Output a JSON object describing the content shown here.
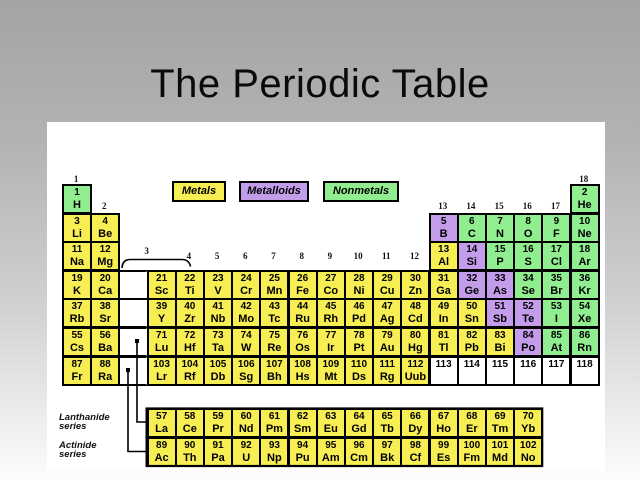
{
  "slide": {
    "title": "The Periodic Table"
  },
  "legend": {
    "metals": "Metals",
    "metalloids": "Metalloids",
    "nonmetals": "Nonmetals"
  },
  "series_labels": {
    "lanthanide": "Lanthanide series",
    "actinide": "Actinide series"
  },
  "colors": {
    "metal": "#F7EE53",
    "metalloid": "#C49DEA",
    "nonmetal": "#90EE90",
    "empty": "#FFFFFF",
    "background_top": "#A4A4A4",
    "background_bottom": "#FCFCFC"
  },
  "group_labels": [
    {
      "label": "1",
      "g": 0,
      "band": "top"
    },
    {
      "label": "2",
      "g": 1,
      "band": "upper"
    },
    {
      "label": "3",
      "g": 3,
      "band": "bracket"
    },
    {
      "label": "4",
      "g": 4,
      "band": "mid"
    },
    {
      "label": "5",
      "g": 5,
      "band": "mid"
    },
    {
      "label": "6",
      "g": 6,
      "band": "mid"
    },
    {
      "label": "7",
      "g": 7,
      "band": "mid"
    },
    {
      "label": "8",
      "g": 8,
      "band": "mid"
    },
    {
      "label": "9",
      "g": 9,
      "band": "mid"
    },
    {
      "label": "10",
      "g": 10,
      "band": "mid"
    },
    {
      "label": "11",
      "g": 11,
      "band": "mid"
    },
    {
      "label": "12",
      "g": 12,
      "band": "mid"
    },
    {
      "label": "13",
      "g": 13,
      "band": "upper"
    },
    {
      "label": "14",
      "g": 14,
      "band": "upper"
    },
    {
      "label": "15",
      "g": 15,
      "band": "upper"
    },
    {
      "label": "16",
      "g": 16,
      "band": "upper"
    },
    {
      "label": "17",
      "g": 17,
      "band": "upper"
    },
    {
      "label": "18",
      "g": 18,
      "band": "top"
    }
  ],
  "elements": [
    {
      "n": "1",
      "s": "H",
      "t": "nonmetal",
      "r": 1,
      "g": 0
    },
    {
      "n": "2",
      "s": "He",
      "t": "nonmetal",
      "r": 1,
      "g": 18
    },
    {
      "n": "3",
      "s": "Li",
      "t": "metal",
      "r": 2,
      "g": 0
    },
    {
      "n": "4",
      "s": "Be",
      "t": "metal",
      "r": 2,
      "g": 1
    },
    {
      "n": "5",
      "s": "B",
      "t": "metalloid",
      "r": 2,
      "g": 13
    },
    {
      "n": "6",
      "s": "C",
      "t": "nonmetal",
      "r": 2,
      "g": 14
    },
    {
      "n": "7",
      "s": "N",
      "t": "nonmetal",
      "r": 2,
      "g": 15
    },
    {
      "n": "8",
      "s": "O",
      "t": "nonmetal",
      "r": 2,
      "g": 16
    },
    {
      "n": "9",
      "s": "F",
      "t": "nonmetal",
      "r": 2,
      "g": 17
    },
    {
      "n": "10",
      "s": "Ne",
      "t": "nonmetal",
      "r": 2,
      "g": 18
    },
    {
      "n": "11",
      "s": "Na",
      "t": "metal",
      "r": 3,
      "g": 0
    },
    {
      "n": "12",
      "s": "Mg",
      "t": "metal",
      "r": 3,
      "g": 1
    },
    {
      "n": "13",
      "s": "Al",
      "t": "metal",
      "r": 3,
      "g": 13
    },
    {
      "n": "14",
      "s": "Si",
      "t": "metalloid",
      "r": 3,
      "g": 14
    },
    {
      "n": "15",
      "s": "P",
      "t": "nonmetal",
      "r": 3,
      "g": 15
    },
    {
      "n": "16",
      "s": "S",
      "t": "nonmetal",
      "r": 3,
      "g": 16
    },
    {
      "n": "17",
      "s": "Cl",
      "t": "nonmetal",
      "r": 3,
      "g": 17
    },
    {
      "n": "18",
      "s": "Ar",
      "t": "nonmetal",
      "r": 3,
      "g": 18
    },
    {
      "n": "19",
      "s": "K",
      "t": "metal",
      "r": 4,
      "g": 0
    },
    {
      "n": "20",
      "s": "Ca",
      "t": "metal",
      "r": 4,
      "g": 1
    },
    {
      "n": "",
      "s": "",
      "t": "gap",
      "r": 4,
      "g": 2
    },
    {
      "n": "21",
      "s": "Sc",
      "t": "metal",
      "r": 4,
      "g": 3
    },
    {
      "n": "22",
      "s": "Ti",
      "t": "metal",
      "r": 4,
      "g": 4
    },
    {
      "n": "23",
      "s": "V",
      "t": "metal",
      "r": 4,
      "g": 5
    },
    {
      "n": "24",
      "s": "Cr",
      "t": "metal",
      "r": 4,
      "g": 6
    },
    {
      "n": "25",
      "s": "Mn",
      "t": "metal",
      "r": 4,
      "g": 7
    },
    {
      "n": "26",
      "s": "Fe",
      "t": "metal",
      "r": 4,
      "g": 8
    },
    {
      "n": "27",
      "s": "Co",
      "t": "metal",
      "r": 4,
      "g": 9
    },
    {
      "n": "28",
      "s": "Ni",
      "t": "metal",
      "r": 4,
      "g": 10
    },
    {
      "n": "29",
      "s": "Cu",
      "t": "metal",
      "r": 4,
      "g": 11
    },
    {
      "n": "30",
      "s": "Zn",
      "t": "metal",
      "r": 4,
      "g": 12
    },
    {
      "n": "31",
      "s": "Ga",
      "t": "metal",
      "r": 4,
      "g": 13
    },
    {
      "n": "32",
      "s": "Ge",
      "t": "metalloid",
      "r": 4,
      "g": 14
    },
    {
      "n": "33",
      "s": "As",
      "t": "metalloid",
      "r": 4,
      "g": 15
    },
    {
      "n": "34",
      "s": "Se",
      "t": "nonmetal",
      "r": 4,
      "g": 16
    },
    {
      "n": "35",
      "s": "Br",
      "t": "nonmetal",
      "r": 4,
      "g": 17
    },
    {
      "n": "36",
      "s": "Kr",
      "t": "nonmetal",
      "r": 4,
      "g": 18
    },
    {
      "n": "37",
      "s": "Rb",
      "t": "metal",
      "r": 5,
      "g": 0
    },
    {
      "n": "38",
      "s": "Sr",
      "t": "metal",
      "r": 5,
      "g": 1
    },
    {
      "n": "",
      "s": "",
      "t": "gap",
      "r": 5,
      "g": 2
    },
    {
      "n": "39",
      "s": "Y",
      "t": "metal",
      "r": 5,
      "g": 3
    },
    {
      "n": "40",
      "s": "Zr",
      "t": "metal",
      "r": 5,
      "g": 4
    },
    {
      "n": "41",
      "s": "Nb",
      "t": "metal",
      "r": 5,
      "g": 5
    },
    {
      "n": "42",
      "s": "Mo",
      "t": "metal",
      "r": 5,
      "g": 6
    },
    {
      "n": "43",
      "s": "Tc",
      "t": "metal",
      "r": 5,
      "g": 7
    },
    {
      "n": "44",
      "s": "Ru",
      "t": "metal",
      "r": 5,
      "g": 8
    },
    {
      "n": "45",
      "s": "Rh",
      "t": "metal",
      "r": 5,
      "g": 9
    },
    {
      "n": "46",
      "s": "Pd",
      "t": "metal",
      "r": 5,
      "g": 10
    },
    {
      "n": "47",
      "s": "Ag",
      "t": "metal",
      "r": 5,
      "g": 11
    },
    {
      "n": "48",
      "s": "Cd",
      "t": "metal",
      "r": 5,
      "g": 12
    },
    {
      "n": "49",
      "s": "In",
      "t": "metal",
      "r": 5,
      "g": 13
    },
    {
      "n": "50",
      "s": "Sn",
      "t": "metal",
      "r": 5,
      "g": 14
    },
    {
      "n": "51",
      "s": "Sb",
      "t": "metalloid",
      "r": 5,
      "g": 15
    },
    {
      "n": "52",
      "s": "Te",
      "t": "metalloid",
      "r": 5,
      "g": 16
    },
    {
      "n": "53",
      "s": "I",
      "t": "nonmetal",
      "r": 5,
      "g": 17
    },
    {
      "n": "54",
      "s": "Xe",
      "t": "nonmetal",
      "r": 5,
      "g": 18
    },
    {
      "n": "55",
      "s": "Cs",
      "t": "metal",
      "r": 6,
      "g": 0
    },
    {
      "n": "56",
      "s": "Ba",
      "t": "metal",
      "r": 6,
      "g": 1
    },
    {
      "n": "",
      "s": "",
      "t": "gap",
      "r": 6,
      "g": 2
    },
    {
      "n": "71",
      "s": "Lu",
      "t": "metal",
      "r": 6,
      "g": 3
    },
    {
      "n": "72",
      "s": "Hf",
      "t": "metal",
      "r": 6,
      "g": 4
    },
    {
      "n": "73",
      "s": "Ta",
      "t": "metal",
      "r": 6,
      "g": 5
    },
    {
      "n": "74",
      "s": "W",
      "t": "metal",
      "r": 6,
      "g": 6
    },
    {
      "n": "75",
      "s": "Re",
      "t": "metal",
      "r": 6,
      "g": 7
    },
    {
      "n": "76",
      "s": "Os",
      "t": "metal",
      "r": 6,
      "g": 8
    },
    {
      "n": "77",
      "s": "Ir",
      "t": "metal",
      "r": 6,
      "g": 9
    },
    {
      "n": "78",
      "s": "Pt",
      "t": "metal",
      "r": 6,
      "g": 10
    },
    {
      "n": "79",
      "s": "Au",
      "t": "metal",
      "r": 6,
      "g": 11
    },
    {
      "n": "80",
      "s": "Hg",
      "t": "metal",
      "r": 6,
      "g": 12
    },
    {
      "n": "81",
      "s": "Tl",
      "t": "metal",
      "r": 6,
      "g": 13
    },
    {
      "n": "82",
      "s": "Pb",
      "t": "metal",
      "r": 6,
      "g": 14
    },
    {
      "n": "83",
      "s": "Bi",
      "t": "metal",
      "r": 6,
      "g": 15
    },
    {
      "n": "84",
      "s": "Po",
      "t": "metalloid",
      "r": 6,
      "g": 16
    },
    {
      "n": "85",
      "s": "At",
      "t": "nonmetal",
      "r": 6,
      "g": 17
    },
    {
      "n": "86",
      "s": "Rn",
      "t": "nonmetal",
      "r": 6,
      "g": 18
    },
    {
      "n": "87",
      "s": "Fr",
      "t": "metal",
      "r": 7,
      "g": 0
    },
    {
      "n": "88",
      "s": "Ra",
      "t": "metal",
      "r": 7,
      "g": 1
    },
    {
      "n": "",
      "s": "",
      "t": "gap",
      "r": 7,
      "g": 2
    },
    {
      "n": "103",
      "s": "Lr",
      "t": "metal",
      "r": 7,
      "g": 3
    },
    {
      "n": "104",
      "s": "Rf",
      "t": "metal",
      "r": 7,
      "g": 4
    },
    {
      "n": "105",
      "s": "Db",
      "t": "metal",
      "r": 7,
      "g": 5
    },
    {
      "n": "106",
      "s": "Sg",
      "t": "metal",
      "r": 7,
      "g": 6
    },
    {
      "n": "107",
      "s": "Bh",
      "t": "metal",
      "r": 7,
      "g": 7
    },
    {
      "n": "108",
      "s": "Hs",
      "t": "metal",
      "r": 7,
      "g": 8
    },
    {
      "n": "109",
      "s": "Mt",
      "t": "metal",
      "r": 7,
      "g": 9
    },
    {
      "n": "110",
      "s": "Ds",
      "t": "metal",
      "r": 7,
      "g": 10
    },
    {
      "n": "111",
      "s": "Rg",
      "t": "metal",
      "r": 7,
      "g": 11
    },
    {
      "n": "112",
      "s": "Uub",
      "t": "metal",
      "r": 7,
      "g": 12
    },
    {
      "n": "113",
      "s": "",
      "t": "empty",
      "r": 7,
      "g": 13
    },
    {
      "n": "114",
      "s": "",
      "t": "empty",
      "r": 7,
      "g": 14
    },
    {
      "n": "115",
      "s": "",
      "t": "empty",
      "r": 7,
      "g": 15
    },
    {
      "n": "116",
      "s": "",
      "t": "empty",
      "r": 7,
      "g": 16
    },
    {
      "n": "117",
      "s": "",
      "t": "empty",
      "r": 7,
      "g": 17
    },
    {
      "n": "118",
      "s": "",
      "t": "empty",
      "r": 7,
      "g": 18
    },
    {
      "n": "57",
      "s": "La",
      "t": "metal",
      "r": 8,
      "g": 3
    },
    {
      "n": "58",
      "s": "Ce",
      "t": "metal",
      "r": 8,
      "g": 4
    },
    {
      "n": "59",
      "s": "Pr",
      "t": "metal",
      "r": 8,
      "g": 5
    },
    {
      "n": "60",
      "s": "Nd",
      "t": "metal",
      "r": 8,
      "g": 6
    },
    {
      "n": "61",
      "s": "Pm",
      "t": "metal",
      "r": 8,
      "g": 7
    },
    {
      "n": "62",
      "s": "Sm",
      "t": "metal",
      "r": 8,
      "g": 8
    },
    {
      "n": "63",
      "s": "Eu",
      "t": "metal",
      "r": 8,
      "g": 9
    },
    {
      "n": "64",
      "s": "Gd",
      "t": "metal",
      "r": 8,
      "g": 10
    },
    {
      "n": "65",
      "s": "Tb",
      "t": "metal",
      "r": 8,
      "g": 11
    },
    {
      "n": "66",
      "s": "Dy",
      "t": "metal",
      "r": 8,
      "g": 12
    },
    {
      "n": "67",
      "s": "Ho",
      "t": "metal",
      "r": 8,
      "g": 13
    },
    {
      "n": "68",
      "s": "Er",
      "t": "metal",
      "r": 8,
      "g": 14
    },
    {
      "n": "69",
      "s": "Tm",
      "t": "metal",
      "r": 8,
      "g": 15
    },
    {
      "n": "70",
      "s": "Yb",
      "t": "metal",
      "r": 8,
      "g": 16
    },
    {
      "n": "89",
      "s": "Ac",
      "t": "metal",
      "r": 9,
      "g": 3
    },
    {
      "n": "90",
      "s": "Th",
      "t": "metal",
      "r": 9,
      "g": 4
    },
    {
      "n": "91",
      "s": "Pa",
      "t": "metal",
      "r": 9,
      "g": 5
    },
    {
      "n": "92",
      "s": "U",
      "t": "metal",
      "r": 9,
      "g": 6
    },
    {
      "n": "93",
      "s": "Np",
      "t": "metal",
      "r": 9,
      "g": 7
    },
    {
      "n": "94",
      "s": "Pu",
      "t": "metal",
      "r": 9,
      "g": 8
    },
    {
      "n": "95",
      "s": "Am",
      "t": "metal",
      "r": 9,
      "g": 9
    },
    {
      "n": "96",
      "s": "Cm",
      "t": "metal",
      "r": 9,
      "g": 10
    },
    {
      "n": "97",
      "s": "Bk",
      "t": "metal",
      "r": 9,
      "g": 11
    },
    {
      "n": "98",
      "s": "Cf",
      "t": "metal",
      "r": 9,
      "g": 12
    },
    {
      "n": "99",
      "s": "Es",
      "t": "metal",
      "r": 9,
      "g": 13
    },
    {
      "n": "100",
      "s": "Fm",
      "t": "metal",
      "r": 9,
      "g": 14
    },
    {
      "n": "101",
      "s": "Md",
      "t": "metal",
      "r": 9,
      "g": 15
    },
    {
      "n": "102",
      "s": "No",
      "t": "metal",
      "r": 9,
      "g": 16
    }
  ]
}
